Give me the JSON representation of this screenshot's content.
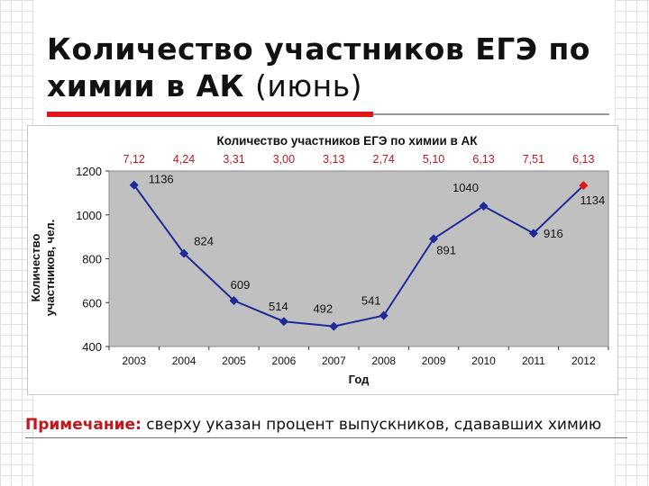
{
  "slide": {
    "title_bold": "Количество участников ЕГЭ по химии в АК",
    "title_normal": "(июнь)",
    "note_label": "Примечание:",
    "note_text": "сверху указан процент выпускников, сдававших химию"
  },
  "colors": {
    "accent_rule": "#e0161c",
    "plot_bg": "#c0c0c0",
    "line": "#1f2a9a",
    "marker": "#1f2a9a",
    "highlight_marker": "#e0161c",
    "percent_text": "#c0161c"
  },
  "chart_data": {
    "type": "line",
    "title": "Количество участников ЕГЭ по химии в АК",
    "xlabel": "Год",
    "ylabel": "Количество участников, чел.",
    "categories": [
      "2003",
      "2004",
      "2005",
      "2006",
      "2007",
      "2008",
      "2009",
      "2010",
      "2011",
      "2012"
    ],
    "values": [
      1136,
      824,
      609,
      514,
      492,
      541,
      891,
      1040,
      916,
      1134
    ],
    "value_labels": [
      "1136",
      "824",
      "609",
      "514",
      "492",
      "541",
      "891",
      "1040",
      "916",
      "1134"
    ],
    "percent_labels": [
      "7,12",
      "4,24",
      "3,31",
      "3,00",
      "3,13",
      "2,74",
      "5,10",
      "6,13",
      "7,51",
      "6,13"
    ],
    "highlighted_point": "2012",
    "ylim": [
      400,
      1200
    ],
    "yticks": [
      "400",
      "600",
      "800",
      "1000",
      "1200"
    ],
    "grid": false,
    "legend": "none"
  }
}
